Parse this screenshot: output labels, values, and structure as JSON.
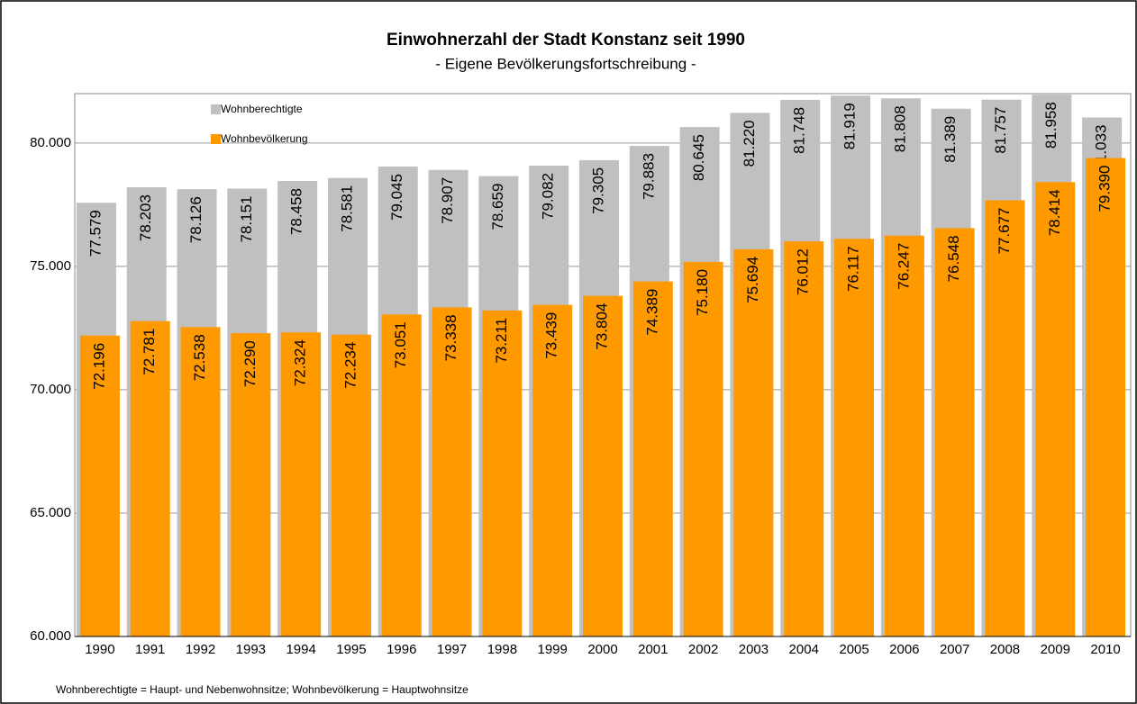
{
  "chart_data": {
    "type": "overlap_bar",
    "title": "Einwohnerzahl der Stadt Konstanz seit 1990",
    "subtitle": "- Eigene Bevölkerungsfortschreibung -",
    "footnote": "Wohnberechtigte = Haupt- und Nebenwohnsitze;  Wohnbevölkerung = Hauptwohnsitze",
    "categories": [
      "1990",
      "1991",
      "1992",
      "1993",
      "1994",
      "1995",
      "1996",
      "1997",
      "1998",
      "1999",
      "2000",
      "2001",
      "2002",
      "2003",
      "2004",
      "2005",
      "2006",
      "2007",
      "2008",
      "2009",
      "2010"
    ],
    "series": [
      {
        "name": "Wohnberechtigte",
        "color": "#c0c0c0",
        "values": [
          77579,
          78203,
          78126,
          78151,
          78458,
          78581,
          79045,
          78907,
          78659,
          79082,
          79305,
          79883,
          80645,
          81220,
          81748,
          81919,
          81808,
          81389,
          81757,
          81958,
          81033
        ],
        "value_labels": [
          "77.579",
          "78.203",
          "78.126",
          "78.151",
          "78.458",
          "78.581",
          "79.045",
          "78.907",
          "78.659",
          "79.082",
          "79.305",
          "79.883",
          "80.645",
          "81.220",
          "81.748",
          "81.919",
          "81.808",
          "81.389",
          "81.757",
          "81.958",
          "81.033"
        ]
      },
      {
        "name": "Wohnbevölkerung",
        "color": "#ff9900",
        "values": [
          72196,
          72781,
          72538,
          72290,
          72324,
          72234,
          73051,
          73338,
          73211,
          73439,
          73804,
          74389,
          75180,
          75694,
          76012,
          76117,
          76247,
          76548,
          77677,
          78414,
          79390
        ],
        "value_labels": [
          "72.196",
          "72.781",
          "72.538",
          "72.290",
          "72.324",
          "72.234",
          "73.051",
          "73.338",
          "73.211",
          "73.439",
          "73.804",
          "74.389",
          "75.180",
          "75.694",
          "76.012",
          "76.117",
          "76.247",
          "76.548",
          "77.677",
          "78.414",
          "79.390"
        ]
      }
    ],
    "ylim": [
      60000,
      82000
    ],
    "yticks": [
      {
        "value": 60000,
        "label": "60.000"
      },
      {
        "value": 65000,
        "label": "65.000"
      },
      {
        "value": 70000,
        "label": "70.000"
      },
      {
        "value": 75000,
        "label": "75.000"
      },
      {
        "value": 80000,
        "label": "80.000"
      }
    ],
    "grid": true,
    "legend": "top-left"
  }
}
